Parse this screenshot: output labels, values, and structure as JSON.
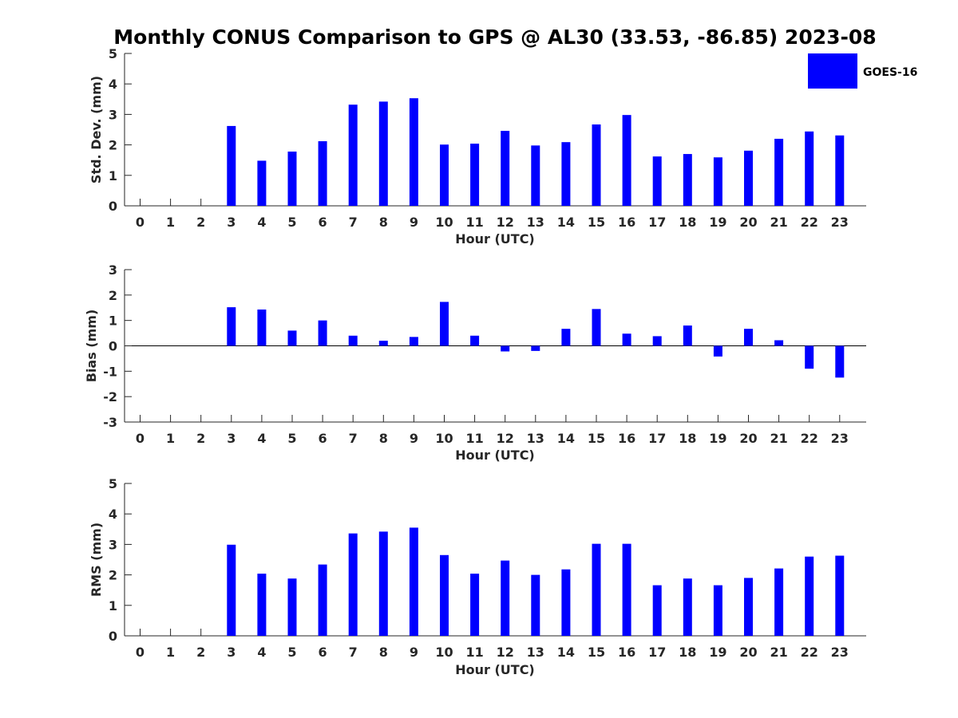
{
  "figure": {
    "title": "Monthly CONUS Comparison to GPS @ AL30 (33.53, -86.85) 2023-08",
    "legend": {
      "label": "GOES-16",
      "color": "#0000ff",
      "placement": "top-right"
    }
  },
  "chart_data": [
    {
      "type": "bar",
      "name": "std-dev",
      "categories": [
        "0",
        "1",
        "2",
        "3",
        "4",
        "5",
        "6",
        "7",
        "8",
        "9",
        "10",
        "11",
        "12",
        "13",
        "14",
        "15",
        "16",
        "17",
        "18",
        "19",
        "20",
        "21",
        "22",
        "23"
      ],
      "series": [
        {
          "name": "GOES-16",
          "color": "#0000ff",
          "values": [
            null,
            null,
            null,
            2.62,
            1.48,
            1.78,
            2.12,
            3.32,
            3.42,
            3.53,
            2.01,
            2.04,
            2.46,
            1.98,
            2.09,
            2.67,
            2.98,
            1.62,
            1.7,
            1.59,
            1.81,
            2.2,
            2.44,
            2.31
          ]
        }
      ],
      "xlabel": "Hour (UTC)",
      "ylabel": "Std. Dev. (mm)",
      "ylim": [
        0,
        5
      ],
      "yticks": [
        "0",
        "1",
        "2",
        "3",
        "4",
        "5"
      ],
      "grid": false
    },
    {
      "type": "bar",
      "name": "bias",
      "categories": [
        "0",
        "1",
        "2",
        "3",
        "4",
        "5",
        "6",
        "7",
        "8",
        "9",
        "10",
        "11",
        "12",
        "13",
        "14",
        "15",
        "16",
        "17",
        "18",
        "19",
        "20",
        "21",
        "22",
        "23"
      ],
      "series": [
        {
          "name": "GOES-16",
          "color": "#0000ff",
          "values": [
            null,
            null,
            null,
            1.52,
            1.43,
            0.6,
            1.0,
            0.4,
            0.2,
            0.35,
            1.73,
            0.4,
            -0.22,
            -0.2,
            0.67,
            1.45,
            0.48,
            0.38,
            0.8,
            -0.42,
            0.67,
            0.22,
            -0.9,
            -1.25
          ]
        }
      ],
      "xlabel": "Hour (UTC)",
      "ylabel": "Bias (mm)",
      "ylim": [
        -3,
        3
      ],
      "yticks": [
        "-3",
        "-2",
        "-1",
        "0",
        "1",
        "2",
        "3"
      ],
      "grid": false
    },
    {
      "type": "bar",
      "name": "rms",
      "categories": [
        "0",
        "1",
        "2",
        "3",
        "4",
        "5",
        "6",
        "7",
        "8",
        "9",
        "10",
        "11",
        "12",
        "13",
        "14",
        "15",
        "16",
        "17",
        "18",
        "19",
        "20",
        "21",
        "22",
        "23"
      ],
      "series": [
        {
          "name": "GOES-16",
          "color": "#0000ff",
          "values": [
            null,
            null,
            null,
            2.99,
            2.04,
            1.88,
            2.34,
            3.36,
            3.42,
            3.55,
            2.65,
            2.04,
            2.47,
            2.0,
            2.18,
            3.02,
            3.02,
            1.66,
            1.88,
            1.66,
            1.9,
            2.21,
            2.6,
            2.63
          ]
        }
      ],
      "xlabel": "Hour (UTC)",
      "ylabel": "RMS (mm)",
      "ylim": [
        0,
        5
      ],
      "yticks": [
        "0",
        "1",
        "2",
        "3",
        "4",
        "5"
      ],
      "grid": false
    }
  ]
}
